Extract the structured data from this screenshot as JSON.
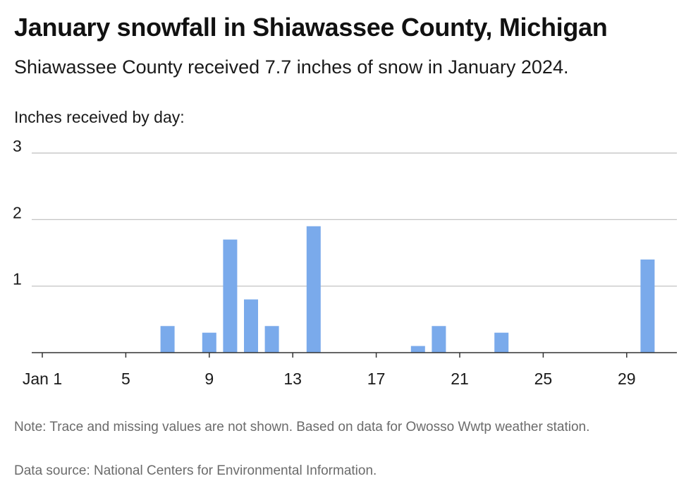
{
  "header": {
    "title": "January snowfall in Shiawassee County, Michigan",
    "subtitle": "Shiawassee County received 7.7 inches of snow in January 2024."
  },
  "chart_data": {
    "type": "bar",
    "title": "January snowfall in Shiawassee County, Michigan",
    "ylabel": "Inches received by day:",
    "xlabel": "",
    "x": [
      1,
      2,
      3,
      4,
      5,
      6,
      7,
      8,
      9,
      10,
      11,
      12,
      13,
      14,
      15,
      16,
      17,
      18,
      19,
      20,
      21,
      22,
      23,
      24,
      25,
      26,
      27,
      28,
      29,
      30,
      31
    ],
    "values": [
      0,
      0,
      0,
      0,
      0,
      0,
      0.4,
      0,
      0.3,
      1.7,
      0.8,
      0.4,
      0,
      1.9,
      0,
      0,
      0,
      0,
      0.1,
      0.4,
      0,
      0,
      0.3,
      0,
      0,
      0,
      0,
      0,
      0,
      1.4,
      0
    ],
    "ylim": [
      0,
      3
    ],
    "yticks": [
      1,
      2,
      3
    ],
    "xticks": [
      {
        "day": 1,
        "label": "Jan 1"
      },
      {
        "day": 5,
        "label": "5"
      },
      {
        "day": 9,
        "label": "9"
      },
      {
        "day": 13,
        "label": "13"
      },
      {
        "day": 17,
        "label": "17"
      },
      {
        "day": 21,
        "label": "21"
      },
      {
        "day": 25,
        "label": "25"
      },
      {
        "day": 29,
        "label": "29"
      }
    ],
    "grid": true,
    "bar_color": "#7aaaeb",
    "grid_color": "#bdbdbd",
    "axis_color": "#333333"
  },
  "footer": {
    "note": "Note: Trace and missing values are not shown. Based on data for Owosso Wwtp weather station.",
    "source": "Data source: National Centers for Environmental Information."
  }
}
